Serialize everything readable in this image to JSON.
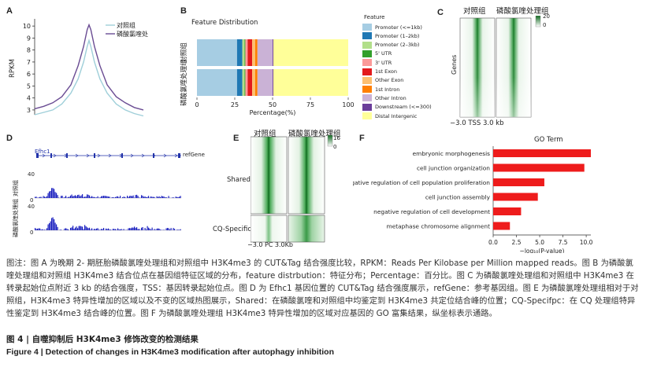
{
  "panels": {
    "A": {
      "letter": "A",
      "ylabel": "RPKM",
      "yticks": [
        "3",
        "4",
        "5",
        "6",
        "7",
        "8",
        "9",
        "10"
      ],
      "legend": [
        "对照组",
        "磷酸氯喹处理组"
      ],
      "series_colors": [
        "#9fcfd9",
        "#6a4c93"
      ]
    },
    "B": {
      "letter": "B",
      "title": "Feature Distribution",
      "xlabel": "Percentage(%)",
      "xticks": [
        "0",
        "25",
        "50",
        "75",
        "100"
      ],
      "row_labels": [
        "对照组",
        "磷酸氯喹处理组"
      ],
      "legend_title": "Feature",
      "features": [
        {
          "name": "Promoter (<=1kb)",
          "color": "#a6cde3"
        },
        {
          "name": "Promoter (1–2kb)",
          "color": "#1f78b4"
        },
        {
          "name": "Promoter (2–3kb)",
          "color": "#b2df8a"
        },
        {
          "name": "5' UTR",
          "color": "#33a02c"
        },
        {
          "name": "3' UTR",
          "color": "#fb9a99"
        },
        {
          "name": "1st Exon",
          "color": "#e31a1c"
        },
        {
          "name": "Other Exon",
          "color": "#fdbf6f"
        },
        {
          "name": "1st Intron",
          "color": "#ff7f00"
        },
        {
          "name": "Other Intron",
          "color": "#cab2d6"
        },
        {
          "name": "Downstream (<=300)",
          "color": "#6a3d9a"
        },
        {
          "name": "Distal Intergenic",
          "color": "#ffff99"
        }
      ]
    },
    "C": {
      "letter": "C",
      "col_labels": [
        "对照组",
        "磷酸氯喹处理组"
      ],
      "ylabel": "Genes",
      "xlabel": "−3.0  TSS 3.0 kb",
      "scale_max": "20",
      "scale_min": "0"
    },
    "D": {
      "letter": "D",
      "gene": "Efhc1",
      "ref": "refGene",
      "ymax": "40",
      "ymin": "0",
      "track_labels": [
        "对照组",
        "磷酸氯喹处理组"
      ]
    },
    "E": {
      "letter": "E",
      "col_labels": [
        "对照组",
        "磷酸氯喹处理组"
      ],
      "row_labels": [
        "Shared",
        "CQ-Specific"
      ],
      "xlabel": "−3.0  PC  3.0Kb",
      "scale_max": "16",
      "scale_min": "0"
    },
    "F": {
      "letter": "F",
      "title": "GO  Term",
      "xlabel": "−log₁₀(P-value)",
      "xticks": [
        "0.0",
        "2.5",
        "5.0",
        "7.5",
        "10.0"
      ]
    }
  },
  "chart_data": [
    {
      "type": "line",
      "panel": "A",
      "ylabel": "RPKM",
      "ylim": [
        2.6,
        10.6
      ],
      "x": [
        -3.0,
        -2.5,
        -2.0,
        -1.5,
        -1.0,
        -0.6,
        -0.3,
        -0.1,
        0,
        0.1,
        0.3,
        0.6,
        1.0,
        1.5,
        2.0,
        2.5,
        3.0
      ],
      "series": [
        {
          "name": "对照组",
          "values": [
            2.6,
            2.8,
            3.0,
            3.5,
            4.4,
            5.6,
            7.0,
            8.3,
            8.8,
            8.3,
            7.0,
            5.6,
            4.4,
            3.5,
            3.0,
            2.7,
            2.5
          ]
        },
        {
          "name": "磷酸氯喹处理组",
          "values": [
            3.1,
            3.3,
            3.6,
            4.1,
            5.1,
            6.7,
            8.3,
            9.7,
            10.1,
            9.7,
            8.3,
            6.7,
            5.1,
            4.1,
            3.6,
            3.2,
            3.0
          ]
        }
      ]
    },
    {
      "type": "bar",
      "panel": "B",
      "title": "Feature Distribution",
      "xlabel": "Percentage(%)",
      "orientation": "horizontal-stacked",
      "categories": [
        "对照组",
        "磷酸氯喹处理组"
      ],
      "xlim": [
        0,
        100
      ],
      "series": [
        {
          "name": "Promoter (<=1kb)",
          "values": [
            26.5,
            26.5
          ]
        },
        {
          "name": "Promoter (1–2kb)",
          "values": [
            3.5,
            3.5
          ]
        },
        {
          "name": "Promoter (2–3kb)",
          "values": [
            1.5,
            1.5
          ]
        },
        {
          "name": "5' UTR",
          "values": [
            0.5,
            0.5
          ]
        },
        {
          "name": "3' UTR",
          "values": [
            1.5,
            1.5
          ]
        },
        {
          "name": "1st Exon",
          "values": [
            3.0,
            3.0
          ]
        },
        {
          "name": "Other Exon",
          "values": [
            2.0,
            2.0
          ]
        },
        {
          "name": "1st Intron",
          "values": [
            1.5,
            1.5
          ]
        },
        {
          "name": "Other Intron",
          "values": [
            10.0,
            10.0
          ]
        },
        {
          "name": "Downstream (<=300)",
          "values": [
            0.5,
            0.5
          ]
        },
        {
          "name": "Distal Intergenic",
          "values": [
            49.5,
            49.5
          ]
        }
      ]
    },
    {
      "type": "bar",
      "panel": "F",
      "title": "GO  Term",
      "xlabel": "−log₁₀(P-value)",
      "orientation": "horizontal",
      "xlim": [
        0,
        10.5
      ],
      "categories": [
        "embryonic morphogenesis",
        "cell junction organization",
        "negative regulation of cell population proliferation",
        "cell junction assembly",
        "negative regulation of cell development",
        "metaphase chromosome alignment"
      ],
      "values": [
        10.5,
        9.8,
        5.5,
        4.8,
        3.0,
        1.8
      ]
    }
  ],
  "caption": {
    "text": "图注：图 A 为晚期 2- 期胚胎磷酸氯喹处理组和对照组中 H3K4me3 的 CUT&Tag 结合强度比较，RPKM：Reads Per Kilobase per Million mapped reads。图 B 为磷酸氯喹处理组和对照组 H3K4me3 结合位点在基因组特征区域的分布，feature distrbution：特征分布；Percentage：百分比。图 C 为磷酸氯喹处理组和对照组中 H3K4me3 在转录起始位点附近 3 kb 的结合强度，TSS：基因转录起始位点。图 D 为 Efhc1 基因位置的 CUT&Tag 结合强度展示，refGene：参考基因组。图 E 为磷酸氯喹处理组相对于对照组，H3K4me3 特异性增加的区域以及不变的区域热图展示，Shared：在磷酸氯喹和对照组中均鉴定到 H3K4me3 共定位结合峰的位置；CQ-Specifpc：在 CQ 处理组特异性鉴定到 H3K4me3 结合峰的位置。图 F 为磷酸氯喹处理组 H3K4me3 特异性增加的区域对应基因的 GO 富集结果，纵坐标表示通路。",
    "title_cn": "图 4  |  自噬抑制后 H3K4me3 修饰改变的检测结果",
    "title_en": "Figure 4  |  Detection of changes in H3K4me3 modification after autophagy inhibition"
  }
}
